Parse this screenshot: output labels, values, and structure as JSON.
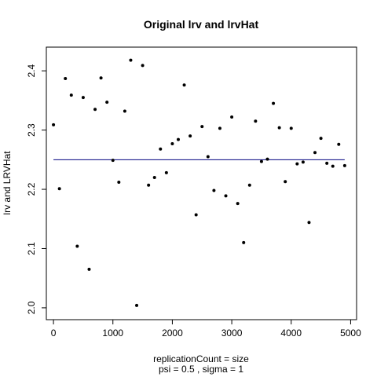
{
  "chart_data": {
    "type": "scatter",
    "title": "Original lrv and lrvHat",
    "xlabel": "replicationCount = size",
    "xlabel_sub": "psi =  0.5 , sigma =  1",
    "ylabel": "lrv and LRVHat",
    "xlim": [
      -120,
      5100
    ],
    "ylim": [
      1.98,
      2.44
    ],
    "xticks": [
      0,
      1000,
      2000,
      3000,
      4000,
      5000
    ],
    "yticks": [
      2.0,
      2.1,
      2.2,
      2.3,
      2.4
    ],
    "xtick_labels": [
      "0",
      "1000",
      "2000",
      "3000",
      "4000",
      "5000"
    ],
    "ytick_labels": [
      "2.0",
      "2.1",
      "2.2",
      "2.3",
      "2.4"
    ],
    "hline": {
      "y": 2.25,
      "color": "#000080"
    },
    "point_color": "#000000",
    "series": [
      {
        "x": [
          0,
          100,
          200,
          300,
          400,
          500,
          600,
          700,
          800,
          900,
          1000,
          1100,
          1200,
          1300,
          1400,
          1500,
          1600,
          1700,
          1800,
          1900,
          2000,
          2100,
          2200,
          2300,
          2400,
          2500,
          2600,
          2700,
          2800,
          2900,
          3000,
          3100,
          3200,
          3300,
          3400,
          3500,
          3600,
          3700,
          3800,
          3900,
          4000,
          4100,
          4200,
          4300,
          4400,
          4500,
          4600,
          4700,
          4800,
          4900
        ],
        "y": [
          2.309,
          2.201,
          2.387,
          2.359,
          2.104,
          2.355,
          2.065,
          2.335,
          2.388,
          2.347,
          2.249,
          2.212,
          2.332,
          2.418,
          2.004,
          2.409,
          2.207,
          2.22,
          2.268,
          2.228,
          2.277,
          2.284,
          2.376,
          2.29,
          2.157,
          2.306,
          2.255,
          2.198,
          2.303,
          2.189,
          2.322,
          2.176,
          2.11,
          2.207,
          2.315,
          2.247,
          2.251,
          2.345,
          2.304,
          2.213,
          2.303,
          2.243,
          2.246,
          2.144,
          2.262,
          2.286,
          2.244,
          2.239,
          2.276,
          2.24
        ]
      }
    ]
  }
}
